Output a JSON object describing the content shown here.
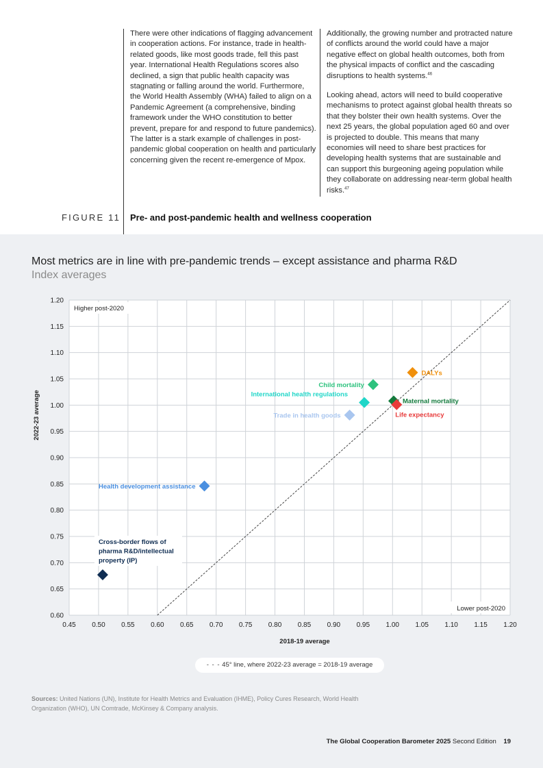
{
  "text": {
    "col1": "There were other indications of flagging advancement in cooperation actions. For instance, trade in health-related goods, like most goods trade, fell this past year. International Health Regulations scores also declined, a sign that public health capacity was stagnating or falling around the world. Furthermore, the World Health Assembly (WHA) failed to align on a Pandemic Agreement (a comprehensive, binding framework under the WHO constitution to better prevent, prepare for and respond to future pandemics). The latter is a stark example of challenges in post-pandemic global cooperation on health and particularly concerning given the recent re-emergence of Mpox.",
    "col2_p1": "Additionally, the growing number and protracted nature of conflicts around the world could have a major negative effect on global health outcomes, both from the physical impacts of conflict and the cascading disruptions to health systems.",
    "col2_p1_ref": "46",
    "col2_p2": "Looking ahead, actors will need to build cooperative mechanisms to protect against global health threats so that they bolster their own health systems. Over the next 25 years, the global population aged 60 and over is projected to double. This means that many economies will need to share best practices for developing health systems that are sustainable and can support this burgeoning ageing population while they collaborate on addressing near-term global health risks.",
    "col2_p2_ref": "47"
  },
  "figure": {
    "label": "FIGURE 11",
    "title": "Pre- and post-pandemic health and wellness cooperation"
  },
  "chart_title": "Most metrics are in line with pre-pandemic trends – except assistance and pharma R&D",
  "chart_subtitle": "Index averages",
  "legend_text": "45° line, where 2022-23 average = 2018-19 average",
  "sources_label": "Sources:",
  "sources_text": "United Nations (UN), Institute for Health Metrics and Evaluation (IHME), Policy Cures Research, World Health Organization (WHO), UN Comtrade, McKinsey & Company analysis.",
  "footer": {
    "report": "The Global Cooperation Barometer 2025",
    "edition": "Second Edition",
    "page": "19"
  },
  "chart_data": {
    "type": "scatter",
    "xlabel": "2018-19 average",
    "ylabel": "2022-23 average",
    "xlim": [
      0.45,
      1.2
    ],
    "ylim": [
      0.6,
      1.2
    ],
    "xticks": [
      "0.45",
      "0.50",
      "0.55",
      "0.60",
      "0.65",
      "0.70",
      "0.75",
      "0.80",
      "0.85",
      "0.90",
      "0.95",
      "1.00",
      "1.05",
      "1.10",
      "1.15",
      "1.20"
    ],
    "yticks": [
      "0.60",
      "0.65",
      "0.70",
      "0.75",
      "0.80",
      "0.85",
      "0.90",
      "0.95",
      "1.00",
      "1.05",
      "1.10",
      "1.15",
      "1.20"
    ],
    "grid": true,
    "reference_line": "45-degree dashed",
    "corner_labels": {
      "top_left": "Higher post-2020",
      "bottom_right": "Lower post-2020"
    },
    "points": [
      {
        "label": "DALYs",
        "x": 1.034,
        "y": 1.062,
        "color": "#f0900c",
        "label_side": "right"
      },
      {
        "label": "Child mortality",
        "x": 0.967,
        "y": 1.039,
        "color": "#2ec27e",
        "label_side": "left"
      },
      {
        "label": "International health regulations",
        "x": 0.952,
        "y": 1.005,
        "color": "#1fd6c8",
        "label_side": "left-above"
      },
      {
        "label": "Maternal mortality",
        "x": 1.002,
        "y": 1.008,
        "color": "#127a3c",
        "label_side": "right"
      },
      {
        "label": "Life expectancy",
        "x": 1.007,
        "y": 1.001,
        "color": "#e83a3a",
        "label_side": "below-right"
      },
      {
        "label": "Trade in health goods",
        "x": 0.927,
        "y": 0.981,
        "color": "#a9c6ef",
        "label_side": "left"
      },
      {
        "label": "Health development assistance",
        "x": 0.68,
        "y": 0.846,
        "color": "#4a8fe0",
        "label_side": "left"
      },
      {
        "label": "Cross-border flows of pharma R&D/intellectual property (IP)",
        "label_lines": [
          "Cross-border flows of",
          "pharma R&D/intellectual",
          "property (IP)"
        ],
        "x": 0.507,
        "y": 0.677,
        "color": "#0f2d52",
        "label_side": "above"
      }
    ]
  }
}
